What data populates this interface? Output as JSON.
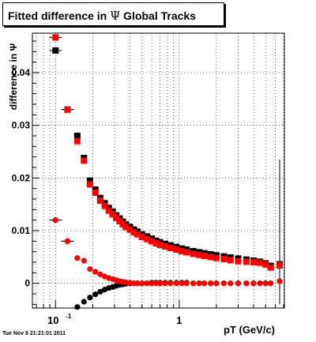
{
  "title": {
    "prefix": "Fitted difference in",
    "symbol": "Ψ",
    "suffix": "Global Tracks"
  },
  "ylabel": "difference in Ψ",
  "xlabel": "pT (GeV/c)",
  "timestamp": "Tue Nov  8 21:21:01 2011",
  "colors": {
    "black_series": "#000000",
    "red_series": "#ff0000",
    "grid": "#000000"
  },
  "chart_data": {
    "type": "scatter",
    "xscale": "log",
    "xlim": [
      0.065,
      7.1
    ],
    "ylim": [
      -0.0047,
      0.0475
    ],
    "yticks": [
      0,
      0.01,
      0.02,
      0.03,
      0.04
    ],
    "ytick_labels": [
      "0",
      "0.01",
      "0.02",
      "0.03",
      "0.04"
    ],
    "xtick_labels": [
      {
        "x": 0.1,
        "base": "10",
        "exp": "-1"
      },
      {
        "x": 1,
        "base": "1",
        "exp": ""
      }
    ],
    "grid": true,
    "series": [
      {
        "color": "black",
        "marker": "square",
        "points": [
          [
            0.1,
            0.0442
          ],
          [
            0.125,
            0.033
          ],
          [
            0.15,
            0.028
          ],
          [
            0.17,
            0.0238
          ],
          [
            0.19,
            0.0195
          ],
          [
            0.21,
            0.0178
          ],
          [
            0.23,
            0.0162
          ],
          [
            0.25,
            0.0152
          ],
          [
            0.27,
            0.0143
          ],
          [
            0.29,
            0.0136
          ],
          [
            0.31,
            0.0129
          ],
          [
            0.33,
            0.0123
          ],
          [
            0.35,
            0.0117
          ],
          [
            0.37,
            0.0112
          ],
          [
            0.4,
            0.0107
          ],
          [
            0.43,
            0.0102
          ],
          [
            0.46,
            0.0098
          ],
          [
            0.5,
            0.0093
          ],
          [
            0.55,
            0.0089
          ],
          [
            0.6,
            0.0085
          ],
          [
            0.65,
            0.0081
          ],
          [
            0.7,
            0.0078
          ],
          [
            0.77,
            0.0075
          ],
          [
            0.85,
            0.0072
          ],
          [
            0.95,
            0.0069
          ],
          [
            1.05,
            0.0066
          ],
          [
            1.15,
            0.0064
          ],
          [
            1.3,
            0.0061
          ],
          [
            1.45,
            0.0059
          ],
          [
            1.6,
            0.0057
          ],
          [
            1.8,
            0.0055
          ],
          [
            2.0,
            0.0053
          ],
          [
            2.3,
            0.0051
          ],
          [
            2.6,
            0.0049
          ],
          [
            3.0,
            0.0047
          ],
          [
            3.5,
            0.0045
          ],
          [
            4.0,
            0.0043
          ],
          [
            4.5,
            0.0041
          ],
          [
            5.0,
            0.0038
          ],
          [
            5.5,
            0.0033
          ],
          [
            6.5,
            0.0036
          ]
        ]
      },
      {
        "color": "red",
        "marker": "square",
        "points": [
          [
            0.1,
            0.0467
          ],
          [
            0.125,
            0.033
          ],
          [
            0.15,
            0.027
          ],
          [
            0.17,
            0.0233
          ],
          [
            0.19,
            0.0188
          ],
          [
            0.21,
            0.0172
          ],
          [
            0.23,
            0.0157
          ],
          [
            0.25,
            0.0147
          ],
          [
            0.27,
            0.0138
          ],
          [
            0.29,
            0.0131
          ],
          [
            0.31,
            0.0124
          ],
          [
            0.33,
            0.0118
          ],
          [
            0.35,
            0.0112
          ],
          [
            0.37,
            0.0107
          ],
          [
            0.4,
            0.0102
          ],
          [
            0.43,
            0.0097
          ],
          [
            0.46,
            0.0093
          ],
          [
            0.5,
            0.0088
          ],
          [
            0.55,
            0.0084
          ],
          [
            0.6,
            0.008
          ],
          [
            0.65,
            0.0076
          ],
          [
            0.7,
            0.0073
          ],
          [
            0.77,
            0.007
          ],
          [
            0.85,
            0.0067
          ],
          [
            0.95,
            0.0064
          ],
          [
            1.05,
            0.0061
          ],
          [
            1.15,
            0.0059
          ],
          [
            1.3,
            0.0056
          ],
          [
            1.45,
            0.0054
          ],
          [
            1.6,
            0.0052
          ],
          [
            1.8,
            0.005
          ],
          [
            2.0,
            0.0048
          ],
          [
            2.3,
            0.0046
          ],
          [
            2.6,
            0.0044
          ],
          [
            3.0,
            0.0042
          ],
          [
            3.5,
            0.0041
          ],
          [
            4.0,
            0.004
          ],
          [
            4.5,
            0.0039
          ],
          [
            5.0,
            0.0036
          ],
          [
            5.5,
            0.003
          ],
          [
            6.5,
            0.0034
          ]
        ]
      },
      {
        "color": "black",
        "marker": "circle",
        "points": [
          [
            0.1,
            0.012
          ],
          [
            0.125,
            0.008
          ],
          [
            0.15,
            -0.0045
          ],
          [
            0.17,
            -0.0035
          ],
          [
            0.19,
            -0.0027
          ],
          [
            0.21,
            -0.0021
          ],
          [
            0.23,
            -0.0016
          ],
          [
            0.25,
            -0.0012
          ],
          [
            0.27,
            -0.0009
          ],
          [
            0.29,
            -0.0007
          ],
          [
            0.31,
            -0.0005
          ],
          [
            0.33,
            -0.0003
          ],
          [
            0.35,
            -0.0002
          ],
          [
            0.37,
            -0.0001
          ],
          [
            0.4,
            0.0
          ],
          [
            0.43,
            0.0
          ],
          [
            0.46,
            0.0
          ],
          [
            0.5,
            0.0
          ],
          [
            0.55,
            0.0
          ],
          [
            0.6,
            0.0001
          ],
          [
            0.65,
            0.0001
          ],
          [
            0.7,
            0.0001
          ],
          [
            0.77,
            0.0001
          ],
          [
            0.85,
            0.0001
          ],
          [
            0.95,
            0.0001
          ],
          [
            1.05,
            0.0001
          ],
          [
            1.15,
            0.0001
          ],
          [
            1.3,
            0.0
          ],
          [
            1.45,
            0.0
          ],
          [
            1.6,
            0.0
          ],
          [
            1.8,
            0.0
          ],
          [
            2.0,
            0.0
          ],
          [
            2.3,
            0.0
          ],
          [
            2.6,
            0.0
          ],
          [
            3.0,
            0.0
          ],
          [
            3.5,
            0.0
          ],
          [
            4.0,
            0.0
          ],
          [
            4.5,
            0.0
          ],
          [
            5.0,
            0.0
          ],
          [
            5.5,
            0.0
          ],
          [
            6.5,
            0.0004
          ]
        ]
      },
      {
        "color": "red",
        "marker": "circle",
        "points": [
          [
            0.1,
            0.012
          ],
          [
            0.125,
            0.008
          ],
          [
            0.15,
            0.0048
          ],
          [
            0.17,
            0.0043
          ],
          [
            0.19,
            0.0027
          ],
          [
            0.21,
            0.0022
          ],
          [
            0.23,
            0.0017
          ],
          [
            0.25,
            0.0013
          ],
          [
            0.27,
            0.001
          ],
          [
            0.29,
            0.0008
          ],
          [
            0.31,
            0.0006
          ],
          [
            0.33,
            0.0004
          ],
          [
            0.35,
            0.0003
          ],
          [
            0.37,
            0.0002
          ],
          [
            0.4,
            0.0001
          ],
          [
            0.43,
            0.0
          ],
          [
            0.46,
            0.0
          ],
          [
            0.5,
            0.0
          ],
          [
            0.55,
            0.0
          ],
          [
            0.6,
            0.0
          ],
          [
            0.65,
            0.0
          ],
          [
            0.7,
            0.0
          ],
          [
            0.77,
            0.0
          ],
          [
            0.85,
            0.0
          ],
          [
            0.95,
            0.0
          ],
          [
            1.05,
            0.0
          ],
          [
            1.15,
            0.0
          ],
          [
            1.3,
            0.0
          ],
          [
            1.45,
            0.0
          ],
          [
            1.6,
            0.0
          ],
          [
            1.8,
            0.0
          ],
          [
            2.0,
            0.0
          ],
          [
            2.3,
            0.0
          ],
          [
            2.6,
            0.0
          ],
          [
            3.0,
            0.0
          ],
          [
            3.5,
            0.0
          ],
          [
            4.0,
            0.0
          ],
          [
            4.5,
            0.0
          ],
          [
            5.0,
            0.0
          ],
          [
            5.5,
            0.0
          ],
          [
            6.5,
            0.0004
          ]
        ]
      }
    ]
  }
}
